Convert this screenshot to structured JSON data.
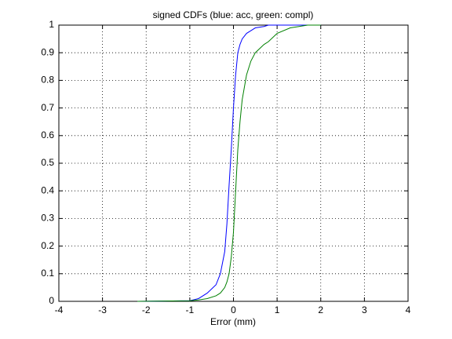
{
  "chart_data": {
    "type": "line",
    "title": "signed CDFs (blue: acc, green: compl)",
    "x_label": "Error (mm)",
    "x": [
      -2.2,
      -1,
      -0.8,
      -0.6,
      -0.4,
      -0.3,
      -0.2,
      -0.15,
      -0.1,
      -0.05,
      0,
      0.05,
      0.1,
      0.15,
      0.2,
      0.3,
      0.4,
      0.5,
      0.7,
      0.8,
      1,
      1.3,
      1.7,
      2.0
    ],
    "series": [
      {
        "color": "#0000ff",
        "values": [
          0,
          0.002,
          0.01,
          0.03,
          0.06,
          0.1,
          0.18,
          0.28,
          0.42,
          0.55,
          0.7,
          0.82,
          0.9,
          0.93,
          0.95,
          0.97,
          0.98,
          0.99,
          0.995,
          1,
          1,
          1,
          1,
          1
        ]
      },
      {
        "color": "#008000",
        "values": [
          0,
          0.002,
          0.005,
          0.01,
          0.02,
          0.03,
          0.05,
          0.07,
          0.1,
          0.16,
          0.25,
          0.4,
          0.55,
          0.65,
          0.73,
          0.82,
          0.87,
          0.9,
          0.93,
          0.94,
          0.97,
          0.99,
          1,
          1
        ]
      }
    ],
    "xlim": [
      -4,
      4
    ],
    "xticks": [
      -4,
      -3,
      -2,
      -1,
      0,
      1,
      2,
      3,
      4
    ],
    "ylim": [
      0,
      1
    ],
    "yticks": [
      0,
      0.1,
      0.2,
      0.3,
      0.4,
      0.5,
      0.6,
      0.7,
      0.8,
      0.9,
      1
    ],
    "grid": true
  }
}
